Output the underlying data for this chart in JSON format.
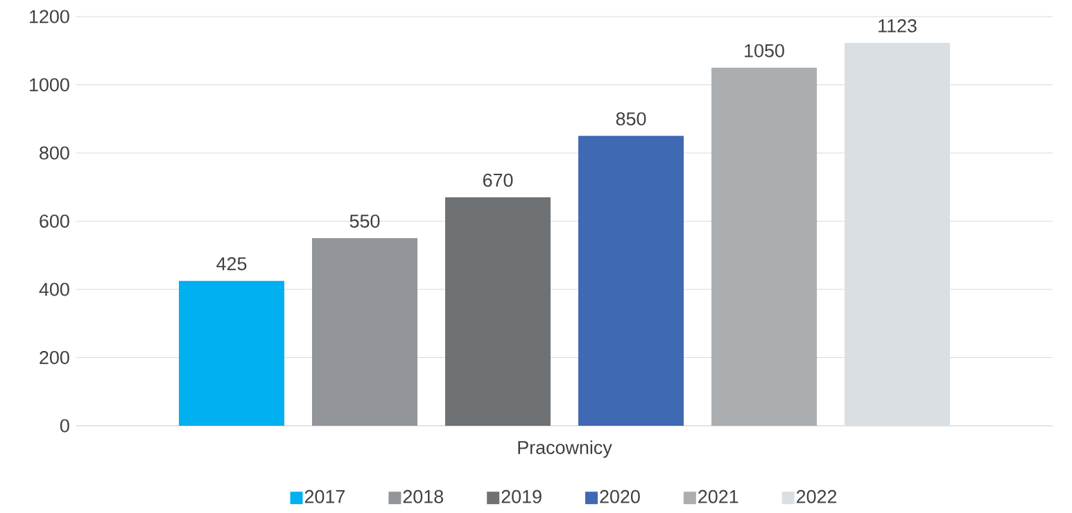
{
  "chart_data": {
    "type": "bar",
    "categories": [
      "Pracownicy"
    ],
    "series": [
      {
        "name": "2017",
        "color": "#00b0f0",
        "values": [
          425
        ]
      },
      {
        "name": "2018",
        "color": "#929599",
        "values": [
          550
        ]
      },
      {
        "name": "2019",
        "color": "#6e7275",
        "values": [
          670
        ]
      },
      {
        "name": "2020",
        "color": "#3f69b2",
        "values": [
          850
        ]
      },
      {
        "name": "2021",
        "color": "#aaaeb1",
        "values": [
          1050
        ]
      },
      {
        "name": "2022",
        "color": "#dadfe3",
        "values": [
          1123
        ]
      }
    ],
    "ylim": [
      0,
      1200
    ],
    "yticks": [
      0,
      200,
      400,
      600,
      800,
      1000,
      1200
    ],
    "grid": "y",
    "legend": "bottom",
    "data_labels": true
  }
}
